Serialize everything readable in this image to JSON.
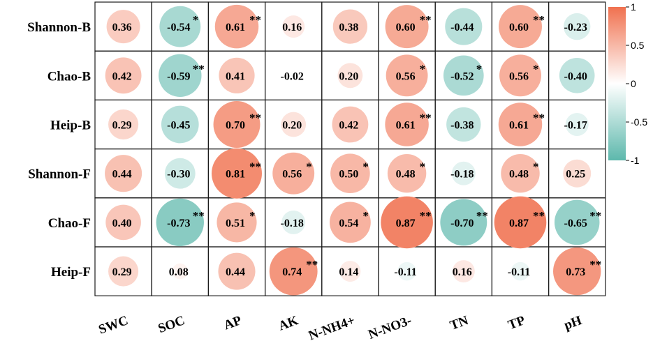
{
  "chart_data": {
    "type": "heatmap",
    "title": "",
    "rows": [
      "Shannon-B",
      "Chao-B",
      "Heip-B",
      "Shannon-F",
      "Chao-F",
      "Heip-F"
    ],
    "columns": [
      "SWC",
      "SOC",
      "AP",
      "AK",
      "N-NH4+",
      "N-NO3-",
      "TN",
      "TP",
      "pH"
    ],
    "values": [
      [
        0.36,
        -0.54,
        0.61,
        0.16,
        0.38,
        0.6,
        -0.44,
        0.6,
        -0.23
      ],
      [
        0.42,
        -0.59,
        0.41,
        -0.02,
        0.2,
        0.56,
        -0.52,
        0.56,
        -0.4
      ],
      [
        0.29,
        -0.45,
        0.7,
        0.2,
        0.42,
        0.61,
        -0.38,
        0.61,
        -0.17
      ],
      [
        0.44,
        -0.3,
        0.81,
        0.56,
        0.5,
        0.48,
        -0.18,
        0.48,
        0.25
      ],
      [
        0.4,
        -0.73,
        0.51,
        -0.18,
        0.54,
        0.87,
        -0.7,
        0.87,
        -0.65
      ],
      [
        0.29,
        0.08,
        0.44,
        0.74,
        0.14,
        -0.11,
        0.16,
        -0.11,
        0.73
      ]
    ],
    "labels": [
      [
        "0.36",
        "-0.54",
        "0.61",
        "0.16",
        "0.38",
        "0.60",
        "-0.44",
        "0.60",
        "-0.23"
      ],
      [
        "0.42",
        "-0.59",
        "0.41",
        "-0.02",
        "0.20",
        "0.56",
        "-0.52",
        "0.56",
        "-0.40"
      ],
      [
        "0.29",
        "-0.45",
        "0.70",
        "0.20",
        "0.42",
        "0.61",
        "-0.38",
        "0.61",
        "-0.17"
      ],
      [
        "0.44",
        "-0.30",
        "0.81",
        "0.56",
        "0.50",
        "0.48",
        "-0.18",
        "0.48",
        "0.25"
      ],
      [
        "0.40",
        "-0.73",
        "0.51",
        "-0.18",
        "0.54",
        "0.87",
        "-0.70",
        "0.87",
        "-0.65"
      ],
      [
        "0.29",
        "0.08",
        "0.44",
        "0.74",
        "0.14",
        "-0.11",
        "0.16",
        "-0.11",
        "0.73"
      ]
    ],
    "significance": [
      [
        "",
        "*",
        "**",
        "",
        "",
        "**",
        "",
        "**",
        ""
      ],
      [
        "",
        "**",
        "",
        "",
        "",
        "*",
        "*",
        "*",
        ""
      ],
      [
        "",
        "",
        "**",
        "",
        "",
        "**",
        "",
        "**",
        ""
      ],
      [
        "",
        "",
        "**",
        "*",
        "*",
        "*",
        "",
        "*",
        ""
      ],
      [
        "",
        "**",
        "*",
        "",
        "*",
        "**",
        "**",
        "**",
        "**"
      ],
      [
        "",
        "",
        "",
        "**",
        "",
        "",
        "",
        "",
        "**"
      ]
    ],
    "color_scale": {
      "range": [
        -1,
        1
      ],
      "ticks": [
        1,
        0.5,
        0,
        -0.5,
        -1
      ],
      "tick_labels": [
        "1",
        "0.5",
        "0",
        "-0.5",
        "-1"
      ],
      "colors": {
        "negative": "#5db8ac",
        "zero": "#ffffff",
        "positive": "#f0714f"
      }
    },
    "legend": "right"
  }
}
